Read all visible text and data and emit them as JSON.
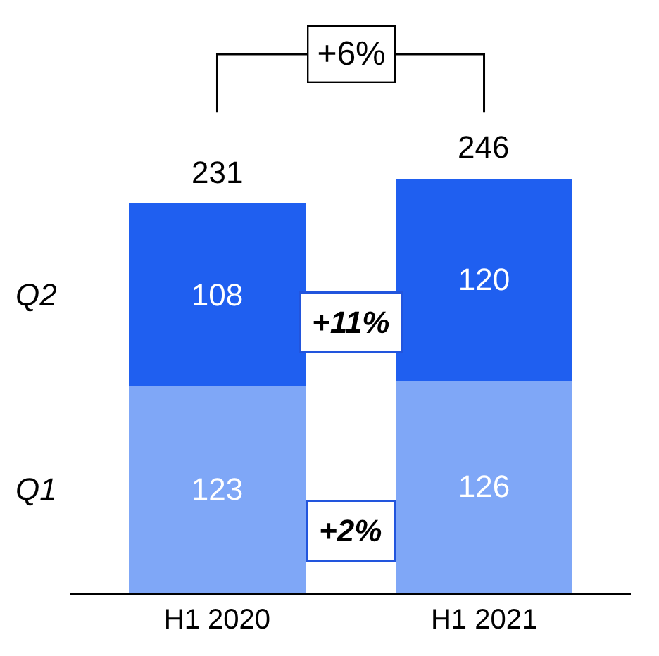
{
  "chart_data": {
    "type": "bar",
    "stacked": true,
    "categories": [
      "H1 2020",
      "H1 2021"
    ],
    "series": [
      {
        "name": "Q1",
        "color": "#7fa7f7",
        "values": [
          123,
          126
        ]
      },
      {
        "name": "Q2",
        "color": "#1f5ff0",
        "values": [
          108,
          120
        ]
      }
    ],
    "data_labels": true,
    "totals": [
      "231",
      "246"
    ],
    "annotations": [
      "+6%",
      "+11%",
      "+2%"
    ],
    "legend": false
  }
}
